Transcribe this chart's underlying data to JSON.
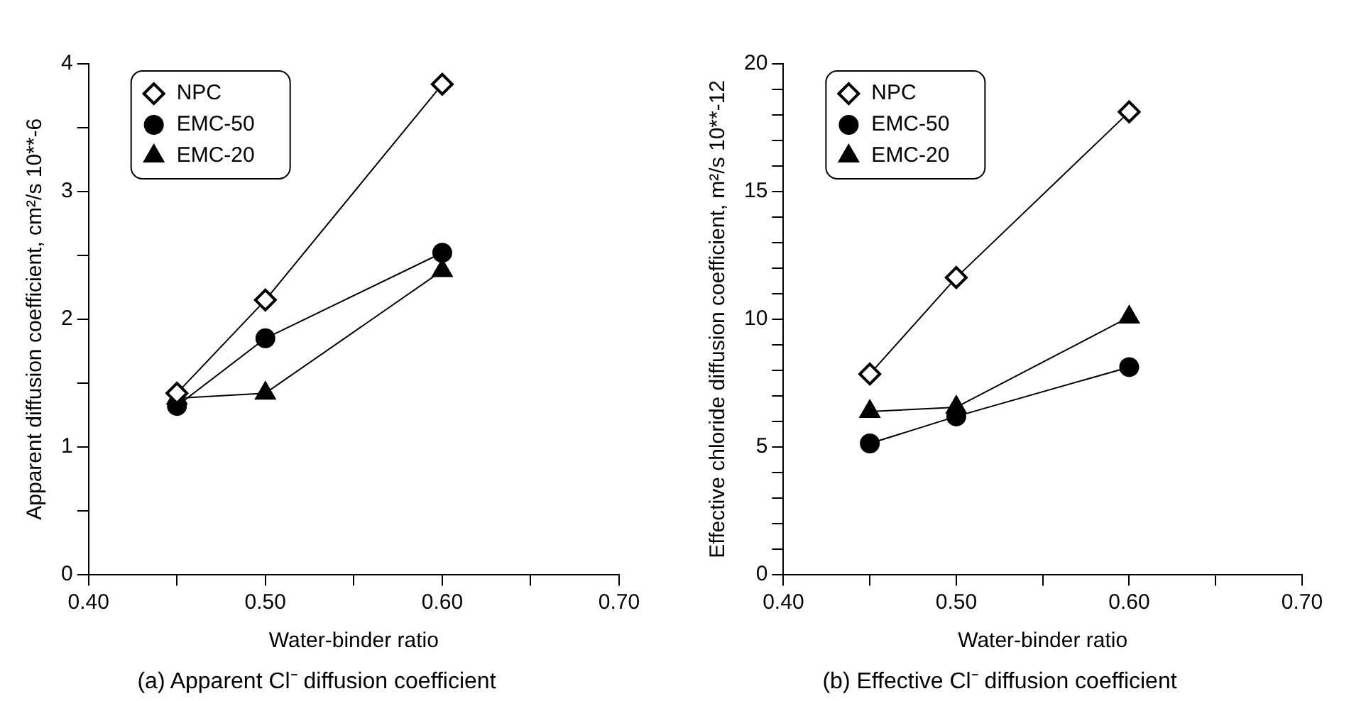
{
  "chart_data": [
    {
      "type": "line",
      "title": "(a) Apparent Cl⁻ diffusion coefficient",
      "xlabel": "Water-binder ratio",
      "ylabel": "Apparent diffusion coefficient, cm²/s 10**-6",
      "x": [
        0.45,
        0.5,
        0.6
      ],
      "series": [
        {
          "name": "NPC",
          "color": "#000000",
          "marker": "diamond",
          "values": [
            1.42,
            2.15,
            3.84
          ]
        },
        {
          "name": "EMC-50",
          "color": "#000000",
          "marker": "circle",
          "values": [
            1.32,
            1.85,
            2.52
          ]
        },
        {
          "name": "EMC-20",
          "color": "#000000",
          "marker": "triangle",
          "values": [
            1.38,
            1.42,
            2.38
          ]
        }
      ],
      "xlim": [
        0.4,
        0.7
      ],
      "xticks": [
        {
          "value": 0.4,
          "label": "0.40"
        },
        {
          "value": 0.45,
          "label": null
        },
        {
          "value": 0.5,
          "label": "0.50"
        },
        {
          "value": 0.55,
          "label": null
        },
        {
          "value": 0.6,
          "label": "0.60"
        },
        {
          "value": 0.65,
          "label": null
        },
        {
          "value": 0.7,
          "label": "0.70"
        }
      ],
      "ylim": [
        0,
        4
      ],
      "yticks": [
        0,
        {
          "value": 0.5,
          "label": null
        },
        1,
        {
          "value": 1.5,
          "label": null
        },
        2,
        {
          "value": 2.5,
          "label": null
        },
        3,
        {
          "value": 3.5,
          "label": null
        },
        4
      ],
      "legend": "top left",
      "grid": false
    },
    {
      "type": "line",
      "title": "(b) Effective Cl⁻ diffusion coefficient",
      "xlabel": "Water-binder ratio",
      "ylabel": "Effective chloride diffusion coefficient, m²/s 10**-12",
      "x": [
        0.45,
        0.5,
        0.6
      ],
      "series": [
        {
          "name": "NPC",
          "color": "#000000",
          "marker": "diamond",
          "values": [
            7.85,
            11.63,
            18.12
          ]
        },
        {
          "name": "EMC-50",
          "color": "#000000",
          "marker": "circle",
          "values": [
            5.13,
            6.19,
            8.12
          ]
        },
        {
          "name": "EMC-20",
          "color": "#000000",
          "marker": "triangle",
          "values": [
            6.38,
            6.55,
            10.08
          ]
        }
      ],
      "xlim": [
        0.4,
        0.7
      ],
      "xticks": [
        {
          "value": 0.4,
          "label": "0.40"
        },
        {
          "value": 0.45,
          "label": null
        },
        {
          "value": 0.5,
          "label": "0.50"
        },
        {
          "value": 0.55,
          "label": null
        },
        {
          "value": 0.6,
          "label": "0.60"
        },
        {
          "value": 0.65,
          "label": null
        },
        {
          "value": 0.7,
          "label": "0.70"
        }
      ],
      "ylim": [
        0,
        20
      ],
      "yticks": [
        0,
        {
          "value": 1,
          "label": null
        },
        {
          "value": 2,
          "label": null
        },
        {
          "value": 3,
          "label": null
        },
        {
          "value": 4,
          "label": null
        },
        5,
        {
          "value": 6,
          "label": null
        },
        {
          "value": 7,
          "label": null
        },
        {
          "value": 8,
          "label": null
        },
        {
          "value": 9,
          "label": null
        },
        10,
        {
          "value": 11,
          "label": null
        },
        {
          "value": 12,
          "label": null
        },
        {
          "value": 13,
          "label": null
        },
        {
          "value": 14,
          "label": null
        },
        15,
        {
          "value": 16,
          "label": null
        },
        {
          "value": 17,
          "label": null
        },
        {
          "value": 18,
          "label": null
        },
        {
          "value": 19,
          "label": null
        },
        20
      ],
      "legend": "top left",
      "grid": false
    }
  ]
}
